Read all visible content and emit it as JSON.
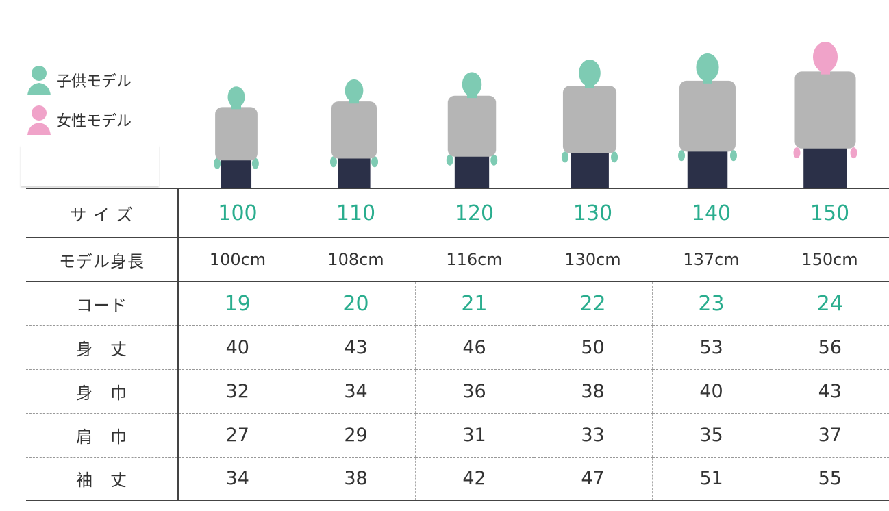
{
  "legend": [
    {
      "label": "子供モデル",
      "icon": "child-model-icon",
      "color": "#7ecbb3"
    },
    {
      "label": "女性モデル",
      "icon": "female-model-icon",
      "color": "#f0a3c9"
    }
  ],
  "colors": {
    "accent": "#2aad8e",
    "child": "#7ecbb3",
    "female": "#f0a3c9",
    "hoodie": "#b5b5b5",
    "pants": "#2b3048"
  },
  "models": [
    {
      "height_cm": 100,
      "type": "child"
    },
    {
      "height_cm": 108,
      "type": "child"
    },
    {
      "height_cm": 116,
      "type": "child"
    },
    {
      "height_cm": 130,
      "type": "child"
    },
    {
      "height_cm": 137,
      "type": "child"
    },
    {
      "height_cm": 150,
      "type": "female"
    }
  ],
  "table": {
    "rows": [
      {
        "label": "サ イ ズ",
        "values": [
          "100",
          "110",
          "120",
          "130",
          "140",
          "150"
        ],
        "accent": true
      },
      {
        "label": "モデル身長",
        "values": [
          "100cm",
          "108cm",
          "116cm",
          "130cm",
          "137cm",
          "150cm"
        ]
      },
      {
        "label": "コード",
        "values": [
          "19",
          "20",
          "21",
          "22",
          "23",
          "24"
        ],
        "accent": true
      },
      {
        "label": "身　丈",
        "values": [
          "40",
          "43",
          "46",
          "50",
          "53",
          "56"
        ]
      },
      {
        "label": "身　巾",
        "values": [
          "32",
          "34",
          "36",
          "38",
          "40",
          "43"
        ]
      },
      {
        "label": "肩　巾",
        "values": [
          "27",
          "29",
          "31",
          "33",
          "35",
          "37"
        ]
      },
      {
        "label": "袖　丈",
        "values": [
          "34",
          "38",
          "42",
          "47",
          "51",
          "55"
        ]
      }
    ]
  }
}
